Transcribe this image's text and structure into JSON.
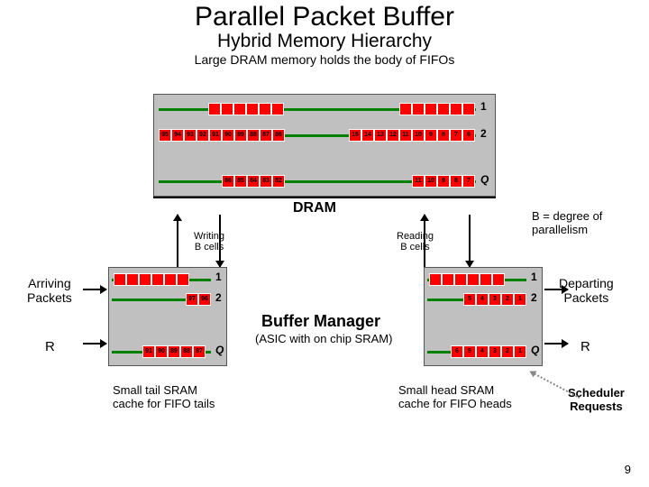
{
  "title": "Parallel Packet Buffer",
  "subtitle": "Hybrid Memory Hierarchy",
  "caption": "Large DRAM memory holds the body of FIFOs",
  "dram": {
    "label": "DRAM",
    "rows": [
      {
        "label": "1",
        "cells_left": [
          "",
          "",
          "",
          "",
          "",
          ""
        ],
        "cells_right": [
          "",
          "",
          "",
          "",
          "",
          ""
        ]
      },
      {
        "label": "2",
        "cells_left": [
          "95",
          "94",
          "93",
          "92",
          "91",
          "90",
          "89",
          "88",
          "87",
          "86"
        ],
        "cells_right": [
          "15",
          "14",
          "13",
          "12",
          "11",
          "10",
          "9",
          "8",
          "7",
          "6"
        ]
      },
      {
        "label": "Q",
        "cells_left": [
          "86",
          "85",
          "84",
          "83",
          "82"
        ],
        "cells_right": [
          "11",
          "10",
          "9",
          "8",
          "7"
        ]
      }
    ]
  },
  "writing_label": "Writing\nB cells",
  "reading_label": "Reading\nB cells",
  "b_degree": "B = degree of\nparallelism",
  "arriving": "Arriving\nPackets",
  "departing": "Departing\nPackets",
  "R": "R",
  "buffer_manager_title": "Buffer Manager",
  "buffer_manager_sub": "(ASIC with on chip SRAM)",
  "tail_sram": {
    "rows": [
      {
        "label": "1",
        "cells": [
          "",
          "",
          "",
          "",
          "",
          ""
        ]
      },
      {
        "label": "2",
        "cells": [
          "97",
          "96"
        ]
      },
      {
        "label": "Q",
        "cells": [
          "91",
          "90",
          "89",
          "88",
          "87"
        ]
      }
    ]
  },
  "head_sram": {
    "rows": [
      {
        "label": "1",
        "cells": [
          "",
          "",
          "",
          "",
          "",
          ""
        ]
      },
      {
        "label": "2",
        "cells": [
          "5",
          "4",
          "3",
          "2",
          "1"
        ]
      },
      {
        "label": "Q",
        "cells": [
          "6",
          "5",
          "4",
          "3",
          "2",
          "1"
        ]
      }
    ]
  },
  "note_left": "Small tail SRAM\ncache for FIFO tails",
  "note_right": "Small head SRAM\ncache for FIFO heads",
  "scheduler": "Scheduler\nRequests",
  "slide_number": "9",
  "colors": {
    "cell": "#ff0000",
    "line": "#008000",
    "box_bg": "#c0c0c0"
  }
}
